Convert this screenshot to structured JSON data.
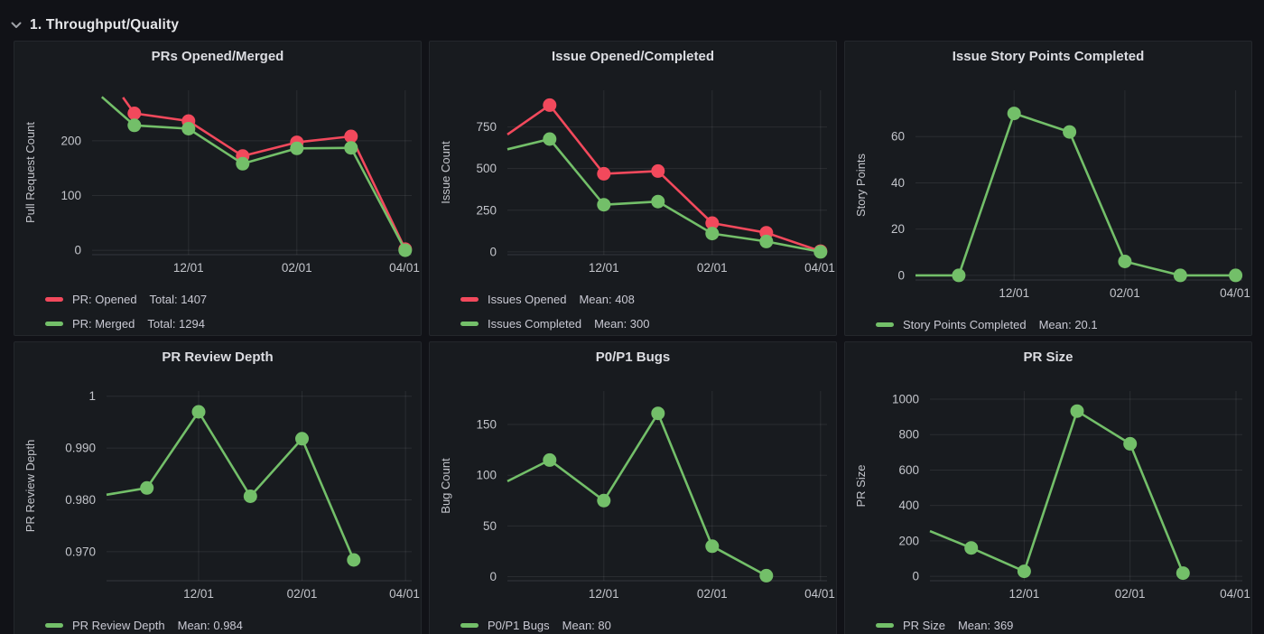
{
  "header": {
    "title": "1. Throughput/Quality",
    "collapse_icon": "chevron-down-icon"
  },
  "colors": {
    "page_bg": "#111217",
    "panel_bg": "#181b1f",
    "red": "#F2495C",
    "green": "#73BF69",
    "grid_line": "rgba(204,204,220,0.10)",
    "axis_line": "rgba(204,204,220,0.16)",
    "tick_text": "#c3c5cb",
    "title_text": "#dcdde2"
  },
  "x_axis_note": "x units are months after 11/01; visible range starts before first point",
  "chart_data": [
    {
      "type": "line",
      "title": "PRs Opened/Merged",
      "ylabel": "Pull Request Count",
      "ylim": [
        -8,
        292
      ],
      "ytick_values": [
        0,
        100,
        200
      ],
      "ytick_labels": [
        "0",
        "100",
        "200"
      ],
      "xlim": [
        -0.78,
        5.12
      ],
      "xtick_months": [
        1,
        3,
        5
      ],
      "xtick_labels": [
        "12/01",
        "02/01",
        "04/01"
      ],
      "series": [
        {
          "name": "PR: Opened",
          "stat": "Total: 1407",
          "color": "#F2495C",
          "edge_start": [
            -0.21,
            279
          ],
          "x": [
            0,
            1,
            2,
            3,
            4,
            5
          ],
          "y": [
            250,
            236,
            172,
            197,
            208,
            2
          ]
        },
        {
          "name": "PR: Merged",
          "stat": "Total: 1294",
          "color": "#73BF69",
          "edge_start": [
            -0.6,
            280
          ],
          "x": [
            0,
            1,
            2,
            3,
            4,
            5
          ],
          "y": [
            228,
            222,
            158,
            186,
            187,
            0
          ]
        }
      ]
    },
    {
      "type": "line",
      "title": "Issue Opened/Completed",
      "ylabel": "Issue Count",
      "ylim": [
        -17,
        970
      ],
      "ytick_values": [
        0,
        250,
        500,
        750
      ],
      "ytick_labels": [
        "0",
        "250",
        "500",
        "750"
      ],
      "xlim": [
        -0.78,
        5.12
      ],
      "xtick_months": [
        1,
        3,
        5
      ],
      "xtick_labels": [
        "12/01",
        "02/01",
        "04/01"
      ],
      "series": [
        {
          "name": "Issues Opened",
          "stat": "Mean: 408",
          "color": "#F2495C",
          "edge_start": [
            -0.78,
            705
          ],
          "x": [
            0,
            1,
            2,
            3,
            4,
            5
          ],
          "y": [
            881,
            469,
            485,
            173,
            115,
            4
          ]
        },
        {
          "name": "Issues Completed",
          "stat": "Mean: 300",
          "color": "#73BF69",
          "edge_start": [
            -0.78,
            616
          ],
          "x": [
            0,
            1,
            2,
            3,
            4,
            5
          ],
          "y": [
            677,
            283,
            302,
            110,
            62,
            0
          ]
        }
      ]
    },
    {
      "type": "line",
      "title": "Issue Story Points Completed",
      "ylabel": "Story Points",
      "ylim": [
        -2,
        80
      ],
      "ytick_values": [
        0,
        20,
        40,
        60
      ],
      "ytick_labels": [
        "0",
        "20",
        "40",
        "60"
      ],
      "xlim": [
        -0.78,
        5.12
      ],
      "xtick_months": [
        1,
        3,
        5
      ],
      "xtick_labels": [
        "12/01",
        "02/01",
        "04/01"
      ],
      "series": [
        {
          "name": "Story Points Completed",
          "stat": "Mean: 20.1",
          "color": "#73BF69",
          "edge_start": [
            -0.78,
            0
          ],
          "x": [
            0,
            1,
            2,
            3,
            4,
            5
          ],
          "y": [
            0,
            70,
            62,
            6,
            0,
            0
          ]
        }
      ]
    },
    {
      "type": "line",
      "title": "PR Review Depth",
      "ylabel": "PR Review Depth",
      "ylim": [
        0.9644,
        1.001
      ],
      "ytick_values": [
        0.97,
        0.98,
        0.99,
        1
      ],
      "ytick_labels": [
        "0.970",
        "0.980",
        "0.990",
        "1"
      ],
      "xlim": [
        -0.78,
        5.12
      ],
      "xtick_months": [
        1,
        3,
        5
      ],
      "xtick_labels": [
        "12/01",
        "02/01",
        "04/01"
      ],
      "series": [
        {
          "name": "PR Review Depth",
          "stat": "Mean: 0.984",
          "color": "#73BF69",
          "edge_start": [
            -0.78,
            0.981
          ],
          "x": [
            0,
            1,
            2,
            3,
            4
          ],
          "y": [
            0.9823,
            0.997,
            0.9807,
            0.9918,
            0.9684
          ]
        }
      ]
    },
    {
      "type": "line",
      "title": "P0/P1 Bugs",
      "ylabel": "Bug Count",
      "ylim": [
        -4,
        183
      ],
      "ytick_values": [
        0,
        50,
        100,
        150
      ],
      "ytick_labels": [
        "0",
        "50",
        "100",
        "150"
      ],
      "xlim": [
        -0.78,
        5.12
      ],
      "xtick_months": [
        1,
        3,
        5
      ],
      "xtick_labels": [
        "12/01",
        "02/01",
        "04/01"
      ],
      "series": [
        {
          "name": "P0/P1 Bugs",
          "stat": "Mean: 80",
          "color": "#73BF69",
          "edge_start": [
            -0.78,
            94
          ],
          "x": [
            0,
            1,
            2,
            3,
            4
          ],
          "y": [
            115,
            75,
            161,
            30,
            1
          ]
        }
      ]
    },
    {
      "type": "line",
      "title": "PR Size",
      "ylabel": "PR Size",
      "ylim": [
        -25,
        1046
      ],
      "ytick_values": [
        0,
        200,
        400,
        600,
        800,
        1000
      ],
      "ytick_labels": [
        "0",
        "200",
        "400",
        "600",
        "800",
        "1000"
      ],
      "xlim": [
        -0.78,
        5.12
      ],
      "xtick_months": [
        1,
        3,
        5
      ],
      "xtick_labels": [
        "12/01",
        "02/01",
        "04/01"
      ],
      "series": [
        {
          "name": "PR Size",
          "stat": "Mean: 369",
          "color": "#73BF69",
          "edge_start": [
            -0.78,
            255
          ],
          "x": [
            0,
            1,
            2,
            3,
            4
          ],
          "y": [
            160,
            28,
            933,
            748,
            18
          ]
        }
      ]
    }
  ]
}
